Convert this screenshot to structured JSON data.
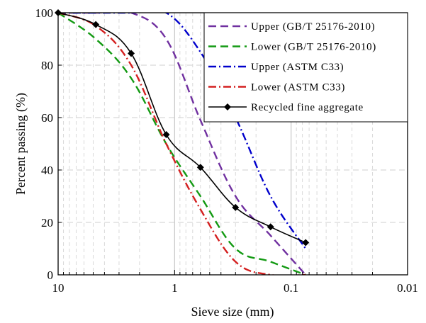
{
  "chart_data": {
    "type": "line",
    "xlabel": "Sieve size (mm)",
    "ylabel": "Percent passing (%)",
    "x_scale": "log",
    "x_reversed": true,
    "xlim": [
      10,
      0.01
    ],
    "ylim": [
      0,
      100
    ],
    "x_ticks": [
      10,
      1,
      0.1,
      0.01
    ],
    "x_tick_labels": [
      "10",
      "1",
      "0.1",
      "0.01"
    ],
    "y_ticks": [
      0,
      20,
      40,
      60,
      80,
      100
    ],
    "y_tick_labels": [
      "0",
      "20",
      "40",
      "60",
      "80",
      "100"
    ],
    "grid": true,
    "legend_position": "top-right",
    "series": [
      {
        "name": "Upper (GB/T 25176-2010)",
        "color": "#7030A0",
        "style": "dash",
        "x": [
          10,
          4.75,
          2.36,
          1.18,
          0.6,
          0.3,
          0.15,
          0.075
        ],
        "y": [
          100,
          100,
          100,
          90,
          59,
          30,
          15,
          0
        ]
      },
      {
        "name": "Lower (GB/T 25176-2010)",
        "color": "#139A13",
        "style": "dash",
        "x": [
          10,
          4.75,
          2.36,
          1.18,
          0.6,
          0.3,
          0.15,
          0.075
        ],
        "y": [
          100,
          90,
          75,
          50,
          30,
          10,
          5,
          0
        ]
      },
      {
        "name": "Upper (ASTM C33)",
        "color": "#0000CC",
        "style": "dashdot",
        "x": [
          10,
          4.75,
          2.36,
          1.18,
          0.6,
          0.3,
          0.15,
          0.075
        ],
        "y": [
          100,
          100,
          100,
          100,
          85,
          60,
          30,
          10
        ]
      },
      {
        "name": "Lower (ASTM C33)",
        "color": "#D42020",
        "style": "dashdot",
        "x": [
          10,
          4.75,
          2.36,
          1.18,
          0.6,
          0.3,
          0.15,
          0.075
        ],
        "y": [
          100,
          95,
          80,
          50,
          25,
          5,
          0,
          0
        ]
      },
      {
        "name": "Recycled fine aggregate",
        "color": "#000000",
        "style": "solid-markers",
        "x": [
          10,
          4.75,
          2.36,
          1.18,
          0.6,
          0.3,
          0.15,
          0.075
        ],
        "y": [
          100,
          95.5,
          84.5,
          53.5,
          41,
          25.7,
          18.3,
          12.3
        ]
      }
    ]
  }
}
